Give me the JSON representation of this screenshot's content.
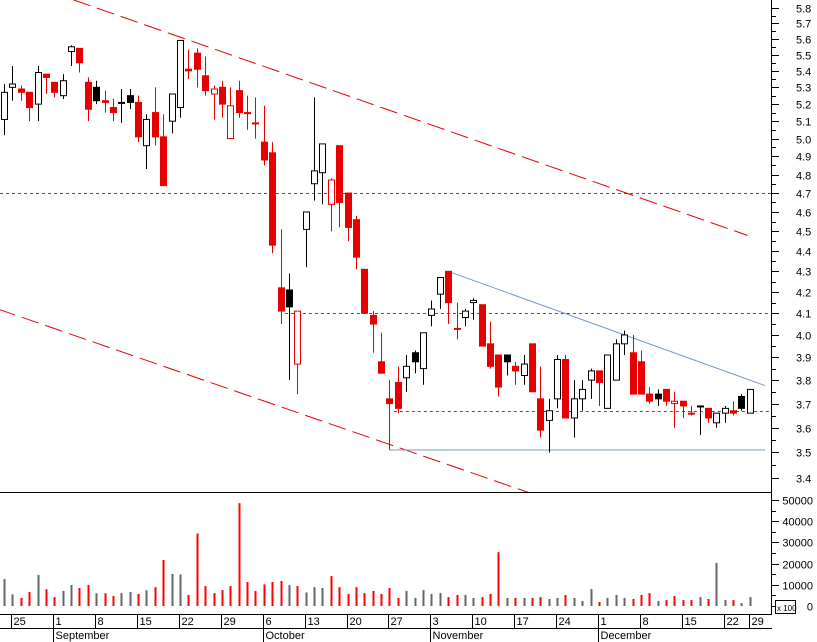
{
  "chart_data": {
    "type": "candlestick",
    "price_axis": {
      "min": 3.4,
      "max": 5.8,
      "scale": "log",
      "side": "right",
      "tick_step": 0.1
    },
    "volume_axis": {
      "min": 0,
      "max": 50000,
      "tick_step": 10000,
      "unit_label": "x 100",
      "side": "right"
    },
    "colors": {
      "down": "#e60000",
      "up_outline": "#000000",
      "volume_up": "#666666",
      "volume_down": "#ff0000",
      "trend_channel": "#e60000",
      "trend_line": "#7799cc",
      "level_line": "#555555"
    },
    "candle_styles": {
      "w": "hollow-black",
      "r": "filled-red",
      "b": "filled-black",
      "rh": "hollow-red"
    },
    "candles": [
      {
        "d": "Aug 22",
        "o": 5.11,
        "h": 5.32,
        "l": 5.02,
        "c": 5.27,
        "s": "w",
        "v": 12700
      },
      {
        "d": "Aug 25",
        "o": 5.3,
        "h": 5.43,
        "l": 5.22,
        "c": 5.32,
        "s": "w",
        "v": 5500
      },
      {
        "d": "Aug 26",
        "o": 5.29,
        "h": 5.31,
        "l": 5.22,
        "c": 5.27,
        "s": "r",
        "v": 3800
      },
      {
        "d": "Aug 27",
        "o": 5.27,
        "h": 5.27,
        "l": 5.1,
        "c": 5.18,
        "s": "r",
        "v": 6600
      },
      {
        "d": "Aug 28",
        "o": 5.2,
        "h": 5.43,
        "l": 5.1,
        "c": 5.39,
        "s": "w",
        "v": 14600
      },
      {
        "d": "Aug 29",
        "o": 5.38,
        "h": 5.38,
        "l": 5.26,
        "c": 5.36,
        "s": "r",
        "v": 7900
      },
      {
        "d": "Sep 1",
        "o": 5.33,
        "h": 5.33,
        "l": 5.24,
        "c": 5.27,
        "s": "r",
        "v": 4200
      },
      {
        "d": "Sep 2",
        "o": 5.25,
        "h": 5.38,
        "l": 5.23,
        "c": 5.34,
        "s": "w",
        "v": 7100
      },
      {
        "d": "Sep 3",
        "o": 5.52,
        "h": 5.56,
        "l": 5.43,
        "c": 5.55,
        "s": "w",
        "v": 9900
      },
      {
        "d": "Sep 4",
        "o": 5.54,
        "h": 5.54,
        "l": 5.39,
        "c": 5.45,
        "s": "r",
        "v": 8500
      },
      {
        "d": "Sep 5",
        "o": 5.33,
        "h": 5.36,
        "l": 5.1,
        "c": 5.17,
        "s": "r",
        "v": 9900
      },
      {
        "d": "Sep 8",
        "o": 5.3,
        "h": 5.34,
        "l": 5.2,
        "c": 5.22,
        "s": "b",
        "v": 6000
      },
      {
        "d": "Sep 9",
        "o": 5.22,
        "h": 5.28,
        "l": 5.15,
        "c": 5.21,
        "s": "r",
        "v": 6000
      },
      {
        "d": "Sep 10",
        "o": 5.18,
        "h": 5.23,
        "l": 5.1,
        "c": 5.15,
        "s": "r",
        "v": 4700
      },
      {
        "d": "Sep 11",
        "o": 5.21,
        "h": 5.29,
        "l": 5.09,
        "c": 5.21,
        "s": "b",
        "v": 6100
      },
      {
        "d": "Sep 12",
        "o": 5.25,
        "h": 5.29,
        "l": 5.17,
        "c": 5.21,
        "s": "b",
        "v": 6600
      },
      {
        "d": "Sep 15",
        "o": 5.21,
        "h": 5.25,
        "l": 4.98,
        "c": 5.01,
        "s": "r",
        "v": 5700
      },
      {
        "d": "Sep 16",
        "o": 4.96,
        "h": 5.14,
        "l": 4.83,
        "c": 5.11,
        "s": "w",
        "v": 7400
      },
      {
        "d": "Sep 17",
        "o": 5.15,
        "h": 5.3,
        "l": 4.96,
        "c": 5.01,
        "s": "r",
        "v": 8900
      },
      {
        "d": "Sep 18",
        "o": 5.01,
        "h": 5.14,
        "l": 4.74,
        "c": 4.74,
        "s": "r",
        "v": 21700
      },
      {
        "d": "Sep 19",
        "o": 5.1,
        "h": 5.26,
        "l": 5.03,
        "c": 5.26,
        "s": "w",
        "v": 15100
      },
      {
        "d": "Sep 22",
        "o": 5.18,
        "h": 5.59,
        "l": 5.12,
        "c": 5.59,
        "s": "w",
        "v": 14900
      },
      {
        "d": "Sep 23",
        "o": 5.41,
        "h": 5.53,
        "l": 5.35,
        "c": 5.4,
        "s": "r",
        "v": 5200
      },
      {
        "d": "Sep 24",
        "o": 5.51,
        "h": 5.54,
        "l": 5.3,
        "c": 5.41,
        "s": "r",
        "v": 34200
      },
      {
        "d": "Sep 25",
        "o": 5.37,
        "h": 5.49,
        "l": 5.25,
        "c": 5.28,
        "s": "r",
        "v": 9400
      },
      {
        "d": "Sep 26",
        "o": 5.26,
        "h": 5.31,
        "l": 5.11,
        "c": 5.29,
        "s": "rh",
        "v": 6100
      },
      {
        "d": "Sep 29",
        "o": 5.3,
        "h": 5.34,
        "l": 5.12,
        "c": 5.2,
        "s": "r",
        "v": 7500
      },
      {
        "d": "Sep 30",
        "o": 5.0,
        "h": 5.3,
        "l": 5.0,
        "c": 5.19,
        "s": "rh",
        "v": 9400
      },
      {
        "d": "Oct 1",
        "o": 5.28,
        "h": 5.34,
        "l": 5.12,
        "c": 5.15,
        "s": "r",
        "v": 48500
      },
      {
        "d": "Oct 2",
        "o": 5.15,
        "h": 5.25,
        "l": 5.05,
        "c": 5.15,
        "s": "r",
        "v": 11300
      },
      {
        "d": "Oct 3",
        "o": 5.09,
        "h": 5.24,
        "l": 5.0,
        "c": 5.09,
        "s": "r",
        "v": 7100
      },
      {
        "d": "Oct 6",
        "o": 4.98,
        "h": 5.19,
        "l": 4.85,
        "c": 4.88,
        "s": "r",
        "v": 10200
      },
      {
        "d": "Oct 7",
        "o": 4.92,
        "h": 4.98,
        "l": 4.39,
        "c": 4.43,
        "s": "r",
        "v": 11300
      },
      {
        "d": "Oct 8",
        "o": 4.22,
        "h": 4.51,
        "l": 4.05,
        "c": 4.11,
        "s": "r",
        "v": 11800
      },
      {
        "d": "Oct 9",
        "o": 4.21,
        "h": 4.29,
        "l": 3.8,
        "c": 4.13,
        "s": "b",
        "v": 9900
      },
      {
        "d": "Oct 10",
        "o": 3.87,
        "h": 4.11,
        "l": 3.74,
        "c": 4.11,
        "s": "rh",
        "v": 9400
      },
      {
        "d": "Oct 13",
        "o": 4.51,
        "h": 4.6,
        "l": 4.32,
        "c": 4.6,
        "s": "w",
        "v": 6400
      },
      {
        "d": "Oct 14",
        "o": 4.75,
        "h": 5.24,
        "l": 4.66,
        "c": 4.82,
        "s": "w",
        "v": 8900
      },
      {
        "d": "Oct 15",
        "o": 4.81,
        "h": 4.97,
        "l": 4.64,
        "c": 4.97,
        "s": "w",
        "v": 8500
      },
      {
        "d": "Oct 16",
        "o": 4.64,
        "h": 4.78,
        "l": 4.5,
        "c": 4.77,
        "s": "rh",
        "v": 14100
      },
      {
        "d": "Oct 17",
        "o": 4.96,
        "h": 4.96,
        "l": 4.52,
        "c": 4.65,
        "s": "r",
        "v": 8900
      },
      {
        "d": "Oct 20",
        "o": 4.7,
        "h": 4.7,
        "l": 4.45,
        "c": 4.52,
        "s": "r",
        "v": 5700
      },
      {
        "d": "Oct 21",
        "o": 4.56,
        "h": 4.58,
        "l": 4.31,
        "c": 4.37,
        "s": "r",
        "v": 8900
      },
      {
        "d": "Oct 22",
        "o": 4.31,
        "h": 4.31,
        "l": 4.1,
        "c": 4.1,
        "s": "r",
        "v": 6100
      },
      {
        "d": "Oct 23",
        "o": 4.09,
        "h": 4.11,
        "l": 3.92,
        "c": 4.05,
        "s": "r",
        "v": 7100
      },
      {
        "d": "Oct 24",
        "o": 3.88,
        "h": 4.01,
        "l": 3.83,
        "c": 3.83,
        "s": "r",
        "v": 5700
      },
      {
        "d": "Oct 27",
        "o": 3.72,
        "h": 3.8,
        "l": 3.51,
        "c": 3.7,
        "s": "r",
        "v": 8500
      },
      {
        "d": "Oct 28",
        "o": 3.79,
        "h": 3.86,
        "l": 3.66,
        "c": 3.68,
        "s": "r",
        "v": 3800
      },
      {
        "d": "Oct 29",
        "o": 3.81,
        "h": 3.91,
        "l": 3.75,
        "c": 3.86,
        "s": "w",
        "v": 7100
      },
      {
        "d": "Oct 30",
        "o": 3.92,
        "h": 3.93,
        "l": 3.83,
        "c": 3.88,
        "s": "b",
        "v": 3800
      },
      {
        "d": "Oct 31",
        "o": 3.85,
        "h": 4.01,
        "l": 3.78,
        "c": 4.01,
        "s": "w",
        "v": 7500
      },
      {
        "d": "Nov 3",
        "o": 4.09,
        "h": 4.16,
        "l": 4.04,
        "c": 4.12,
        "s": "w",
        "v": 5700
      },
      {
        "d": "Nov 4",
        "o": 4.19,
        "h": 4.27,
        "l": 4.12,
        "c": 4.27,
        "s": "w",
        "v": 6100
      },
      {
        "d": "Nov 5",
        "o": 4.3,
        "h": 4.3,
        "l": 4.05,
        "c": 4.15,
        "s": "r",
        "v": 4200
      },
      {
        "d": "Nov 6",
        "o": 4.03,
        "h": 4.15,
        "l": 3.98,
        "c": 4.03,
        "s": "r",
        "v": 5200
      },
      {
        "d": "Nov 7",
        "o": 4.08,
        "h": 4.12,
        "l": 4.04,
        "c": 4.11,
        "s": "w",
        "v": 5200
      },
      {
        "d": "Nov 10",
        "o": 4.15,
        "h": 4.17,
        "l": 4.07,
        "c": 4.16,
        "s": "w",
        "v": 3800
      },
      {
        "d": "Nov 11",
        "o": 4.14,
        "h": 4.14,
        "l": 3.95,
        "c": 3.95,
        "s": "r",
        "v": 4200
      },
      {
        "d": "Nov 12",
        "o": 3.96,
        "h": 4.06,
        "l": 3.85,
        "c": 3.86,
        "s": "r",
        "v": 5700
      },
      {
        "d": "Nov 13",
        "o": 3.91,
        "h": 3.91,
        "l": 3.73,
        "c": 3.77,
        "s": "r",
        "v": 25400
      },
      {
        "d": "Nov 14",
        "o": 3.91,
        "h": 3.91,
        "l": 3.82,
        "c": 3.88,
        "s": "b",
        "v": 3800
      },
      {
        "d": "Nov 17",
        "o": 3.86,
        "h": 3.88,
        "l": 3.78,
        "c": 3.84,
        "s": "r",
        "v": 3800
      },
      {
        "d": "Nov 18",
        "o": 3.82,
        "h": 3.91,
        "l": 3.78,
        "c": 3.87,
        "s": "w",
        "v": 3800
      },
      {
        "d": "Nov 19",
        "o": 3.96,
        "h": 3.96,
        "l": 3.75,
        "c": 3.75,
        "s": "r",
        "v": 3800
      },
      {
        "d": "Nov 20",
        "o": 3.72,
        "h": 3.86,
        "l": 3.56,
        "c": 3.59,
        "s": "r",
        "v": 4200
      },
      {
        "d": "Nov 21",
        "o": 3.63,
        "h": 3.72,
        "l": 3.5,
        "c": 3.67,
        "s": "w",
        "v": 3300
      },
      {
        "d": "Nov 24",
        "o": 3.72,
        "h": 3.91,
        "l": 3.68,
        "c": 3.89,
        "s": "w",
        "v": 3800
      },
      {
        "d": "Nov 25",
        "o": 3.89,
        "h": 3.91,
        "l": 3.64,
        "c": 3.64,
        "s": "r",
        "v": 5200
      },
      {
        "d": "Nov 26",
        "o": 3.64,
        "h": 3.8,
        "l": 3.56,
        "c": 3.72,
        "s": "w",
        "v": 3800
      },
      {
        "d": "Nov 27",
        "o": 3.72,
        "h": 3.8,
        "l": 3.67,
        "c": 3.76,
        "s": "w",
        "v": 2400
      },
      {
        "d": "Nov 28",
        "o": 3.8,
        "h": 3.85,
        "l": 3.72,
        "c": 3.84,
        "s": "w",
        "v": 8000
      },
      {
        "d": "Dec 1",
        "o": 3.84,
        "h": 3.84,
        "l": 3.69,
        "c": 3.79,
        "s": "r",
        "v": 1900
      },
      {
        "d": "Dec 2",
        "o": 3.68,
        "h": 3.91,
        "l": 3.68,
        "c": 3.91,
        "s": "w",
        "v": 3800
      },
      {
        "d": "Dec 3",
        "o": 3.8,
        "h": 3.98,
        "l": 3.8,
        "c": 3.96,
        "s": "w",
        "v": 5200
      },
      {
        "d": "Dec 4",
        "o": 3.96,
        "h": 4.02,
        "l": 3.91,
        "c": 4.0,
        "s": "w",
        "v": 3800
      },
      {
        "d": "Dec 5",
        "o": 3.92,
        "h": 4.0,
        "l": 3.74,
        "c": 3.74,
        "s": "r",
        "v": 3300
      },
      {
        "d": "Dec 8",
        "o": 3.88,
        "h": 3.93,
        "l": 3.74,
        "c": 3.74,
        "s": "r",
        "v": 5200
      },
      {
        "d": "Dec 9",
        "o": 3.74,
        "h": 3.77,
        "l": 3.7,
        "c": 3.71,
        "s": "r",
        "v": 6100
      },
      {
        "d": "Dec 10",
        "o": 3.74,
        "h": 3.76,
        "l": 3.69,
        "c": 3.72,
        "s": "b",
        "v": 2400
      },
      {
        "d": "Dec 11",
        "o": 3.76,
        "h": 3.76,
        "l": 3.69,
        "c": 3.71,
        "s": "r",
        "v": 2800
      },
      {
        "d": "Dec 12",
        "o": 3.7,
        "h": 3.75,
        "l": 3.6,
        "c": 3.71,
        "s": "rh",
        "v": 4700
      },
      {
        "d": "Dec 15",
        "o": 3.71,
        "h": 3.71,
        "l": 3.64,
        "c": 3.69,
        "s": "r",
        "v": 2800
      },
      {
        "d": "Dec 16",
        "o": 3.66,
        "h": 3.69,
        "l": 3.65,
        "c": 3.66,
        "s": "r",
        "v": 2800
      },
      {
        "d": "Dec 17",
        "o": 3.69,
        "h": 3.69,
        "l": 3.57,
        "c": 3.69,
        "s": "b",
        "v": 4200
      },
      {
        "d": "Dec 18",
        "o": 3.68,
        "h": 3.68,
        "l": 3.62,
        "c": 3.64,
        "s": "r",
        "v": 3300
      },
      {
        "d": "Dec 19",
        "o": 3.62,
        "h": 3.66,
        "l": 3.6,
        "c": 3.66,
        "s": "w",
        "v": 20300
      },
      {
        "d": "Dec 22",
        "o": 3.66,
        "h": 3.69,
        "l": 3.62,
        "c": 3.68,
        "s": "w",
        "v": 2800
      },
      {
        "d": "Dec 23",
        "o": 3.67,
        "h": 3.71,
        "l": 3.65,
        "c": 3.66,
        "s": "r",
        "v": 2800
      },
      {
        "d": "Dec 24",
        "o": 3.73,
        "h": 3.74,
        "l": 3.67,
        "c": 3.68,
        "s": "b",
        "v": 1400
      },
      {
        "d": "Dec 29",
        "o": 3.66,
        "h": 3.76,
        "l": 3.66,
        "c": 3.76,
        "s": "w",
        "v": 4200
      }
    ],
    "trend_lines": [
      {
        "name": "upper-channel",
        "style": "dashed",
        "color": "#e60000",
        "from": {
          "d": "Sep 4",
          "p": 5.84
        },
        "to": {
          "d": "Dec 24",
          "p": 4.49
        }
      },
      {
        "name": "lower-channel",
        "style": "dashed",
        "color": "#e60000",
        "from": {
          "d": "Aug 22",
          "p": 4.11
        },
        "to": {
          "d": "Nov 19",
          "p": 3.34
        }
      },
      {
        "name": "resistance",
        "style": "solid",
        "color": "#7799cc",
        "from": {
          "d": "Nov 5",
          "p": 4.3
        },
        "to": {
          "d": "Dec 29",
          "p": 3.8
        }
      },
      {
        "name": "support",
        "style": "solid",
        "color": "#7799cc",
        "from": {
          "d": "Oct 27",
          "p": 3.51
        },
        "to": {
          "d": "Dec 29",
          "p": 3.51
        }
      }
    ],
    "level_lines": [
      {
        "p": 4.7,
        "from": "Aug 22"
      },
      {
        "p": 4.1,
        "from": "Oct 9"
      },
      {
        "p": 3.67,
        "from": "Oct 28"
      }
    ],
    "x_ticks": [
      {
        "label": "25",
        "d": "Aug 25"
      },
      {
        "label": "1",
        "d": "Sep 1"
      },
      {
        "label": "8",
        "d": "Sep 8"
      },
      {
        "label": "15",
        "d": "Sep 15"
      },
      {
        "label": "22",
        "d": "Sep 22"
      },
      {
        "label": "29",
        "d": "Sep 29"
      },
      {
        "label": "6",
        "d": "Oct 6"
      },
      {
        "label": "13",
        "d": "Oct 13"
      },
      {
        "label": "20",
        "d": "Oct 20"
      },
      {
        "label": "27",
        "d": "Oct 27"
      },
      {
        "label": "3",
        "d": "Nov 3"
      },
      {
        "label": "10",
        "d": "Nov 10"
      },
      {
        "label": "17",
        "d": "Nov 17"
      },
      {
        "label": "24",
        "d": "Nov 24"
      },
      {
        "label": "1",
        "d": "Dec 1"
      },
      {
        "label": "8",
        "d": "Dec 8"
      },
      {
        "label": "15",
        "d": "Dec 15"
      },
      {
        "label": "22",
        "d": "Dec 22"
      },
      {
        "label": "29",
        "d": "Dec 29"
      }
    ],
    "month_labels": [
      {
        "label": "September",
        "d": "Sep 1"
      },
      {
        "label": "October",
        "d": "Oct 6"
      },
      {
        "label": "November",
        "d": "Nov 3"
      },
      {
        "label": "December",
        "d": "Dec 1"
      }
    ],
    "price_tick_labels": [
      "5.8",
      "5.7",
      "5.6",
      "5.5",
      "5.4",
      "5.3",
      "5.2",
      "5.1",
      "5.0",
      "4.9",
      "4.8",
      "4.7",
      "4.6",
      "4.5",
      "4.4",
      "4.3",
      "4.2",
      "4.1",
      "4.0",
      "3.9",
      "3.8",
      "3.7",
      "3.6",
      "3.5",
      "3.4"
    ],
    "volume_tick_labels": [
      "50000",
      "40000",
      "30000",
      "20000",
      "10000",
      "0"
    ]
  }
}
